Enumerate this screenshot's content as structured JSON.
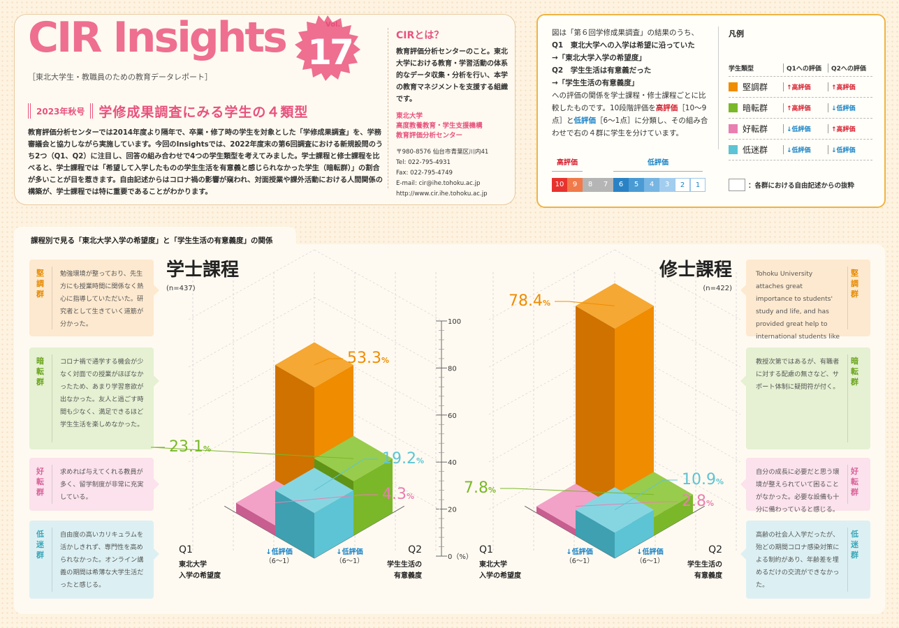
{
  "header": {
    "logo": "CIR Insights",
    "vol_label": "Vol.",
    "vol_number": "17",
    "tagline": "［東北大学生・教職員のための教育データレポート］",
    "issue_label": "2023年秋号",
    "headline": "学修成果調査にみる学生の４類型",
    "intro": "教育評価分析センターでは2014年度より隔年で、卒業・修了時の学生を対象とした「学修成果調査」を、学務審議会と協力しながら実施しています。今回のInsightsでは、2022年度末の第6回調査における新規設問のうち2つ（Q1、Q2）に注目し、回答の組み合わせで4つの学生類型を考えてみました。学士課程と修士課程を比べると、学士課程では「希望して入学したものの学生生活を有意義と感じられなかった学生（暗転群）」の割合が多いことが目を惹きます。自由記述からはコロナ禍の影響が窺われ、対面授業や課外活動における人間関係の構築が、学士課程では特に重要であることがわかります。",
    "cir_question": "CIRとは？",
    "cir_description": "教育評価分析センターのこと。東北大学における教育・学習活動の体系的なデータ収集・分析を行い、本学の教育マネジメントを支援する組織です。",
    "org_lines": [
      "東北大学",
      "高度教養教育・学生支援機構",
      "教育評価分析センター"
    ],
    "contact_lines": [
      "〒980-8576 仙台市青葉区川内41",
      "Tel: 022-795-4931",
      "Fax: 022-795-4749",
      "E-mail: cir@ihe.tohoku.ac.jp",
      "http://www.cir.ihe.tohoku.ac.jp"
    ]
  },
  "explanation": {
    "line1": "図は「第６回学修成果調査」の結果のうち、",
    "q1": "Q1　東北大学への入学は希望に沿っていた",
    "q1_item": "→「東北大学入学の希望度」",
    "q2": "Q2　学生生活は有意義だった",
    "q2_item": "→「学生生活の有意義度」",
    "body_a": "への評価の関係を学士課程・修士課程ごとに比較したものです。10段階評価を",
    "hi_word": "高評価",
    "hi_range": "［10〜9点］と",
    "lo_word": "低評価",
    "lo_range": "［6〜1点］に分類し、その組み合わせで右の４群に学生を分けています。",
    "scale_high_label": "高評価",
    "scale_low_label": "低評価",
    "scale_values": [
      "10",
      "9",
      "8",
      "7",
      "6",
      "5",
      "4",
      "3",
      "2",
      "1"
    ],
    "scale_colors": [
      "#e8322e",
      "#f07a4a",
      "#b5b5b5",
      "#b5b5b5",
      "#2a82c4",
      "#4a9bd4",
      "#77b5e2",
      "#a3cdef",
      "#ffffff",
      "#ffffff"
    ]
  },
  "legend": {
    "title": "凡例",
    "col_type": "学生類型",
    "col_q1": "Q1への評価",
    "col_q2": "Q2への評価",
    "rows": [
      {
        "name": "堅調群",
        "color": "#f08c00",
        "q1": "高評価",
        "q1_dir": "↑",
        "q2": "高評価",
        "q2_dir": "↑"
      },
      {
        "name": "暗転群",
        "color": "#7ab829",
        "q1": "高評価",
        "q1_dir": "↑",
        "q2": "低評価",
        "q2_dir": "↓"
      },
      {
        "name": "好転群",
        "color": "#e97fb0",
        "q1": "低評価",
        "q1_dir": "↓",
        "q2": "高評価",
        "q2_dir": "↑"
      },
      {
        "name": "低迷群",
        "color": "#5cc4d4",
        "q1": "低評価",
        "q1_dir": "↓",
        "q2": "低評価",
        "q2_dir": "↓"
      }
    ],
    "note": "：各群における自由記述からの抜粋"
  },
  "section_title": "課程別で見る「東北大学入学の希望度」と「学生生活の有意義度」の関係",
  "quotes_left": [
    {
      "group": "堅調群",
      "text": "勉強環境が整っており、先生方にも授業時間に関係なく熱心に指導していただいた。研究者として生きていく道筋が分かった。"
    },
    {
      "group": "暗転群",
      "text": "コロナ禍で通学する機会が少なく対面での授業がほぼなかったため、あまり学習意欲が出なかった。友人と過ごす時間も少なく、満足できるほど学生生活を楽しめなかった。"
    },
    {
      "group": "好転群",
      "text": "求めれば与えてくれる教員が多く、留学制度が非常に充実している。"
    },
    {
      "group": "低迷群",
      "text": "自由度の高いカリキュラムを活かしきれず、専門性を高められなかった。オンライン講義の期間は希薄な大学生活だったと感じる。"
    }
  ],
  "quotes_right": [
    {
      "group": "堅調群",
      "text": "Tohoku University attaches great importance to students' study and life, and has provided great help to international students like me."
    },
    {
      "group": "暗転群",
      "text": "教授次第ではあるが、有職者に対する配慮の無さなど、サポート体制に疑問符が付く。"
    },
    {
      "group": "好転群",
      "text": "自分の成長に必要だと思う環境が整えられていて困ることがなかった。必要な設備も十分に備わっていると感じる。"
    },
    {
      "group": "低迷群",
      "text": "高齢の社会人入学だったが、殆どの期間コロナ感染対策による制約があり、年齢差を埋めるだけの交流ができなかった。"
    }
  ],
  "axis": {
    "q1_label": "Q1",
    "q1_text": [
      "東北大学",
      "入学の希望度"
    ],
    "q2_label": "Q2",
    "q2_text": [
      "学生生活の",
      "有意義度"
    ],
    "high_arrow": "↑高評価",
    "high_range": "（10〜9）",
    "low_arrow": "↓低評価",
    "low_range": "（6〜1）",
    "ticks": [
      "100",
      "80",
      "60",
      "40",
      "20",
      "0（%）"
    ]
  },
  "chart_data": [
    {
      "type": "bar",
      "title": "学士課程",
      "n": "(n=437)",
      "categories": [
        "堅調群",
        "暗転群",
        "好転群",
        "低迷群"
      ],
      "values": [
        53.3,
        23.1,
        4.3,
        19.2
      ],
      "value_labels": [
        "53.3",
        "23.1",
        "4.3",
        "19.2"
      ],
      "unit": "%",
      "ylim": [
        0,
        100
      ]
    },
    {
      "type": "bar",
      "title": "修士課程",
      "n": "(n=422)",
      "categories": [
        "堅調群",
        "暗転群",
        "好転群",
        "低迷群"
      ],
      "values": [
        78.4,
        7.8,
        2.8,
        10.9
      ],
      "value_labels": [
        "78.4",
        "7.8",
        "2.8",
        "10.9"
      ],
      "unit": "%",
      "ylim": [
        0,
        100
      ]
    }
  ]
}
